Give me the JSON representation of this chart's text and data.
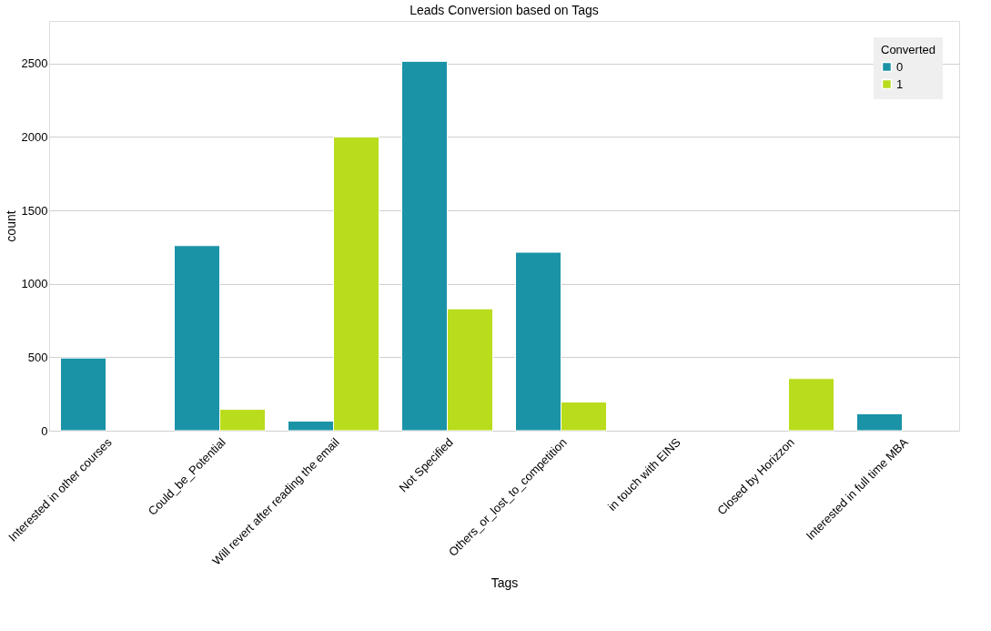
{
  "chart_data": {
    "type": "bar",
    "title": "Leads Conversion based on Tags",
    "xlabel": "Tags",
    "ylabel": "count",
    "legend_title": "Converted",
    "categories": [
      "Interested in other courses",
      "Could_be_Potential",
      "Will revert after reading the email",
      "Not Specified",
      "Others_or_lost_to_competition",
      "in touch with EINS",
      "Closed by Horizzon",
      "Interested  in full time MBA"
    ],
    "series": [
      {
        "name": "0",
        "color": "#1a93a7",
        "values": [
          495,
          1260,
          65,
          2515,
          1215,
          null,
          null,
          115
        ]
      },
      {
        "name": "1",
        "color": "#b9dc1c",
        "values": [
          null,
          145,
          2000,
          830,
          195,
          null,
          355,
          null
        ]
      }
    ],
    "ylim": [
      0,
      2790
    ],
    "yticks": [
      0,
      500,
      1000,
      1500,
      2000,
      2500
    ],
    "grid": "y",
    "legend": "top right"
  }
}
